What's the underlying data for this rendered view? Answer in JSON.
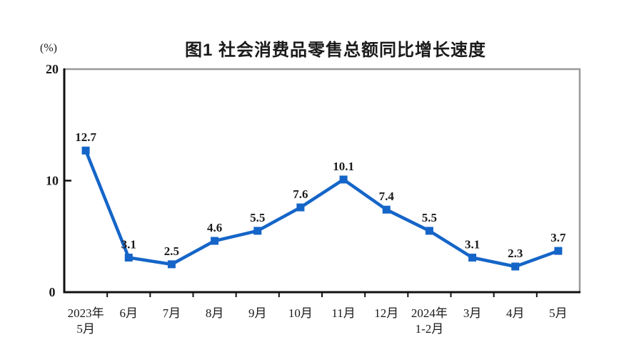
{
  "chart_data": {
    "type": "line",
    "title": "图1  社会消费品零售总额同比增长速度",
    "unit_label": "(%)",
    "categories": [
      [
        "2023年",
        "5月"
      ],
      [
        "6月"
      ],
      [
        "7月"
      ],
      [
        "8月"
      ],
      [
        "9月"
      ],
      [
        "10月"
      ],
      [
        "11月"
      ],
      [
        "12月"
      ],
      [
        "2024年",
        "1-2月"
      ],
      [
        "3月"
      ],
      [
        "4月"
      ],
      [
        "5月"
      ]
    ],
    "values": [
      12.7,
      3.1,
      2.5,
      4.6,
      5.5,
      7.6,
      10.1,
      7.4,
      5.5,
      3.1,
      2.3,
      3.7
    ],
    "ylim": [
      0,
      20
    ],
    "yticks": [
      0,
      10,
      20
    ],
    "grid": false,
    "legend": null,
    "marker": "square",
    "line_color": "#1565C8",
    "frame_color": "#999999",
    "axis_color": "#111111",
    "label_color": "#1a1a1a"
  }
}
